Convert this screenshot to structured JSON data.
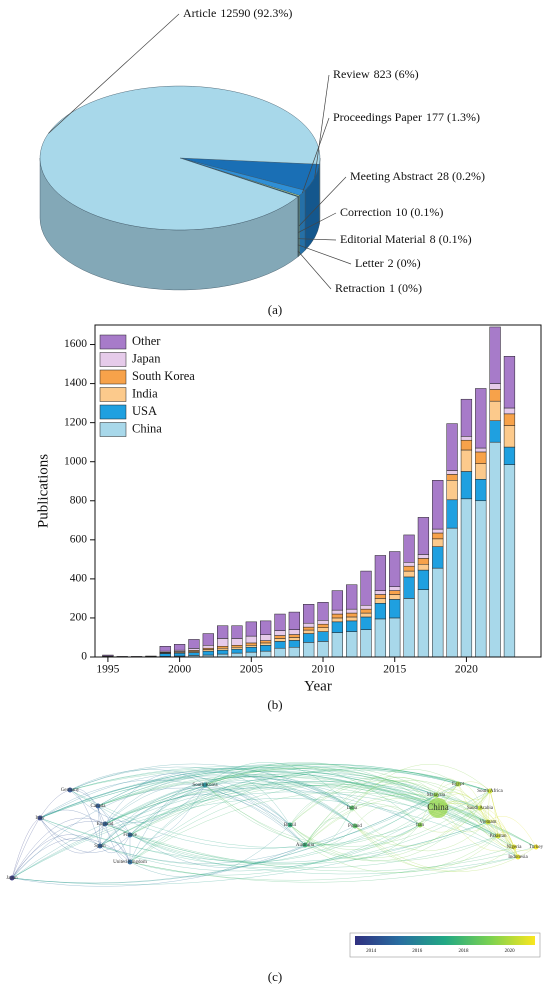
{
  "chart_data": [
    {
      "type": "pie",
      "label": "(a)",
      "categories": [
        "Article",
        "Review",
        "Proceedings Paper",
        "Meeting Abstract",
        "Correction",
        "Editorial Material",
        "Letter",
        "Retraction"
      ],
      "values": [
        12590,
        823,
        177,
        28,
        10,
        8,
        2,
        1
      ],
      "value_labels": [
        "12590 (92.3%)",
        "823 (6%)",
        "177 (1.3%)",
        "28 (0.2%)",
        "10 (0.1%)",
        "8 (0.1%)",
        "2 (0%)",
        "1 (0%)"
      ],
      "colors": [
        "#a8d8ea",
        "#1a6fb5",
        "#2f8fd6",
        "#c9f2a4",
        "#2e7d32",
        "#7b4e9a",
        "#4b3a7a",
        "#d0701e"
      ]
    },
    {
      "type": "stacked_bar",
      "label": "(b)",
      "xlabel": "Year",
      "ylabel": "Publications",
      "x": [
        1995,
        1996,
        1997,
        1998,
        1999,
        2000,
        2001,
        2002,
        2003,
        2004,
        2005,
        2006,
        2007,
        2008,
        2009,
        2010,
        2011,
        2012,
        2013,
        2014,
        2015,
        2016,
        2017,
        2018,
        2019,
        2020,
        2021,
        2022,
        2023
      ],
      "series": [
        {
          "name": "China",
          "color": "#a8d8ea",
          "values": [
            0,
            0,
            0,
            0,
            3,
            5,
            8,
            10,
            15,
            20,
            25,
            30,
            45,
            50,
            75,
            80,
            125,
            130,
            140,
            195,
            200,
            300,
            345,
            455,
            660,
            810,
            800,
            1100,
            985
          ]
        },
        {
          "name": "USA",
          "color": "#1fa0e0",
          "values": [
            3,
            1,
            1,
            2,
            15,
            15,
            15,
            20,
            20,
            20,
            25,
            30,
            35,
            35,
            45,
            50,
            55,
            55,
            65,
            80,
            95,
            110,
            100,
            110,
            145,
            140,
            110,
            110,
            90
          ]
        },
        {
          "name": "India",
          "color": "#fcca8c",
          "values": [
            0,
            0,
            0,
            0,
            3,
            5,
            6,
            8,
            10,
            10,
            10,
            12,
            15,
            15,
            18,
            20,
            20,
            20,
            20,
            25,
            25,
            30,
            30,
            40,
            100,
            110,
            80,
            100,
            110
          ]
        },
        {
          "name": "South Korea",
          "color": "#f7a24a",
          "values": [
            0,
            0,
            0,
            0,
            3,
            3,
            5,
            7,
            10,
            10,
            12,
            12,
            15,
            15,
            15,
            18,
            20,
            20,
            20,
            20,
            20,
            25,
            30,
            30,
            30,
            50,
            60,
            60,
            60
          ]
        },
        {
          "name": "Japan",
          "color": "#e6cbea",
          "values": [
            2,
            1,
            1,
            1,
            6,
            7,
            10,
            15,
            40,
            35,
            35,
            30,
            25,
            25,
            20,
            20,
            20,
            20,
            20,
            20,
            20,
            20,
            20,
            20,
            20,
            20,
            20,
            30,
            30
          ]
        },
        {
          "name": "Other",
          "color": "#a77bc9",
          "values": [
            5,
            1,
            1,
            2,
            25,
            30,
            46,
            60,
            65,
            65,
            73,
            71,
            85,
            90,
            97,
            92,
            100,
            125,
            175,
            180,
            180,
            140,
            190,
            250,
            240,
            190,
            305,
            290,
            265
          ]
        }
      ],
      "xlim": [
        1994.1,
        2025.2
      ],
      "xticks": [
        1995,
        2000,
        2005,
        2010,
        2015,
        2020
      ],
      "ylim": [
        0,
        1700
      ],
      "yticks": [
        0,
        200,
        400,
        600,
        800,
        1000,
        1200,
        1400,
        1600
      ],
      "legend": "upper left"
    },
    {
      "type": "network",
      "label": "(c)",
      "nodes": [
        "Germany",
        "Japan",
        "Italy",
        "Canada",
        "England",
        "France",
        "Spain",
        "United Kingdom",
        "South Korea",
        "Brazil",
        "Australia",
        "Poland",
        "India",
        "Iran",
        "China",
        "Malaysia",
        "Egypt",
        "South Africa",
        "Saudi Arabia",
        "Vietnam",
        "Pakistan",
        "Nigeria",
        "Turkey",
        "Indonesia"
      ],
      "colorbar": {
        "lim": [
          2013.3,
          2021.1
        ],
        "ticks": [
          2014,
          2016,
          2018,
          2020
        ]
      }
    }
  ]
}
